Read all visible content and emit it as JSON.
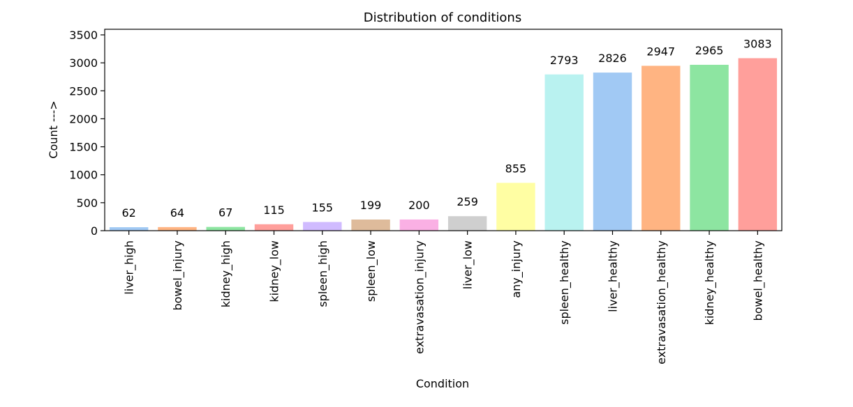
{
  "chart_data": {
    "type": "bar",
    "title": "Distribution of conditions",
    "xlabel": "Condition",
    "ylabel": "Count --->",
    "ylim": [
      0,
      3600
    ],
    "yticks": [
      0,
      500,
      1000,
      1500,
      2000,
      2500,
      3000,
      3500
    ],
    "grid": false,
    "categories": [
      "liver_high",
      "bowel_injury",
      "kidney_high",
      "kidney_low",
      "spleen_high",
      "spleen_low",
      "extravasation_injury",
      "liver_low",
      "any_injury",
      "spleen_healthy",
      "liver_healthy",
      "extravasation_healthy",
      "kidney_healthy",
      "bowel_healthy"
    ],
    "values": [
      62,
      64,
      67,
      115,
      155,
      199,
      200,
      259,
      855,
      2793,
      2826,
      2947,
      2965,
      3083
    ],
    "data_labels": [
      "62",
      "64",
      "67",
      "115",
      "155",
      "199",
      "200",
      "259",
      "855",
      "2793",
      "2826",
      "2947",
      "2965",
      "3083"
    ],
    "colors": [
      "#a1c9f4",
      "#ffb482",
      "#8de5a1",
      "#ff9f9b",
      "#d0bbff",
      "#debb9b",
      "#fab0e4",
      "#cfcfcf",
      "#fffea3",
      "#b9f2f0",
      "#a1c9f4",
      "#ffb482",
      "#8de5a1",
      "#ff9f9b"
    ]
  }
}
